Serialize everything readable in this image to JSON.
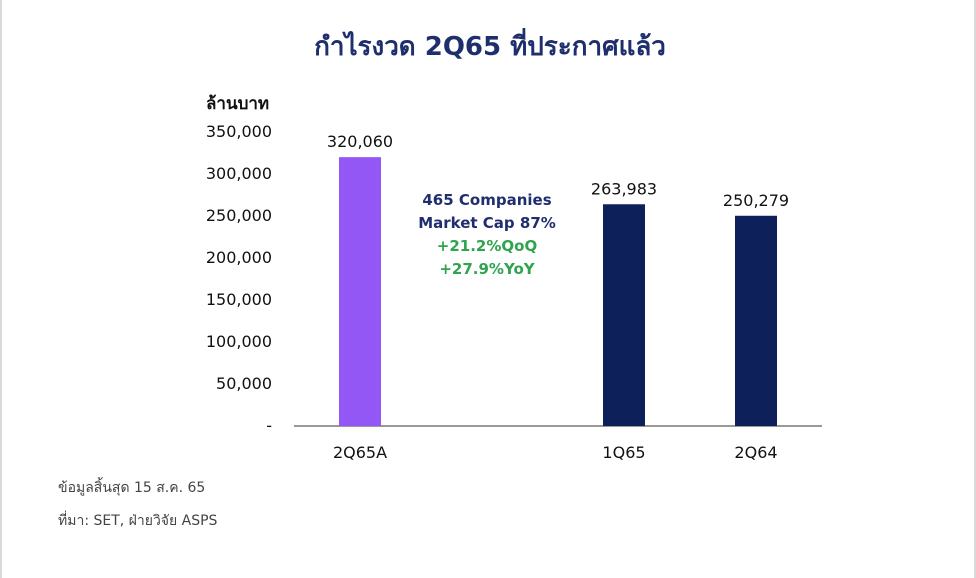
{
  "title": "กำไรงวด 2Q65 ที่ประกาศแล้ว",
  "colors": {
    "title": "#1f2f6e",
    "highlight_bar": "#9257f5",
    "bar": "#0e205a",
    "green_text": "#2ea44f"
  },
  "annotation": {
    "line1": "465 Companies",
    "line2": "Market Cap 87%",
    "line3": "+21.2%QoQ",
    "line4": "+27.9%YoY"
  },
  "notes": {
    "date": "ข้อมูลสิ้นสุด 15 ส.ค. 65",
    "source": "ที่มา: SET, ฝ่ายวิจัย ASPS"
  },
  "chart_data": {
    "type": "bar",
    "categories": [
      "2Q65A",
      "",
      "1Q65",
      "2Q64"
    ],
    "values": [
      320060,
      null,
      263983,
      250279
    ],
    "data_labels": [
      "320,060",
      "",
      "263,983",
      "250,279"
    ],
    "ylabel": "ล้านบาท",
    "ylim": [
      0,
      350000
    ],
    "yticks": [
      0,
      50000,
      100000,
      150000,
      200000,
      250000,
      300000,
      350000
    ],
    "ytick_labels": [
      "-",
      "50,000",
      "100,000",
      "150,000",
      "200,000",
      "250,000",
      "300,000",
      "350,000"
    ],
    "grid": false,
    "legend": "none"
  }
}
